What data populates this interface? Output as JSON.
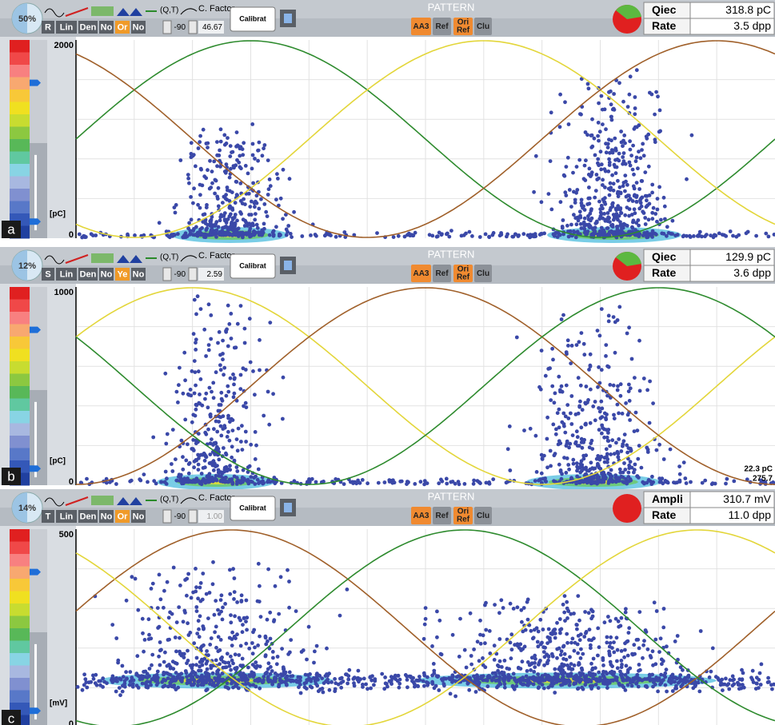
{
  "panels": [
    {
      "label": "a",
      "percent": "50%",
      "toolbar": {
        "buttons": [
          "R",
          "Lin",
          "Den",
          "No",
          "Or",
          "No"
        ],
        "qt": "(Q,T)",
        "cfactor_label": "C. Factor",
        "phase": "-90",
        "cfactor": "46.67",
        "calibrate": "Calibrat"
      },
      "pattern": {
        "title": "PATTERN",
        "buttons": [
          "AA3",
          "Ref",
          [
            "Ori",
            "Ref"
          ],
          "Clu"
        ]
      },
      "readout": [
        {
          "name": "Qiec",
          "value": "318.8 pC"
        },
        {
          "name": "Rate",
          "value": "3.5 dpp"
        }
      ],
      "axis": {
        "max": "2000",
        "min": "0",
        "unit": "[pC]"
      }
    },
    {
      "label": "b",
      "percent": "12%",
      "toolbar": {
        "buttons": [
          "S",
          "Lin",
          "Den",
          "No",
          "Ye",
          "No"
        ],
        "qt": "(Q,T)",
        "cfactor_label": "C. Factor",
        "phase": "-90",
        "cfactor": "2.59",
        "calibrate": "Calibrat"
      },
      "pattern": {
        "title": "PATTERN",
        "buttons": [
          "AA3",
          "Ref",
          [
            "Ori",
            "Ref"
          ],
          "Clu"
        ]
      },
      "readout": [
        {
          "name": "Qiec",
          "value": "129.9 pC"
        },
        {
          "name": "Rate",
          "value": "3.6 dpp"
        }
      ],
      "axis": {
        "max": "1000",
        "min": "0",
        "unit": "[pC]"
      },
      "cursor": [
        "22.3 pC",
        "275.7"
      ]
    },
    {
      "label": "c",
      "percent": "14%",
      "toolbar": {
        "buttons": [
          "T",
          "Lin",
          "Den",
          "No",
          "Or",
          "No"
        ],
        "qt": "(Q,T)",
        "cfactor_label": "C. Factor",
        "phase": "-90",
        "cfactor": "1.00",
        "calibrate": "Calibrat"
      },
      "pattern": {
        "title": "PATTERN",
        "buttons": [
          "AA3",
          "Ref",
          [
            "Ori",
            "Ref"
          ],
          "Clu"
        ]
      },
      "readout": [
        {
          "name": "Ampli",
          "value": "310.7 mV"
        },
        {
          "name": "Rate",
          "value": "11.0 dpp"
        }
      ],
      "axis": {
        "max": "500",
        "min": "0",
        "unit": "[mV]"
      }
    }
  ]
}
